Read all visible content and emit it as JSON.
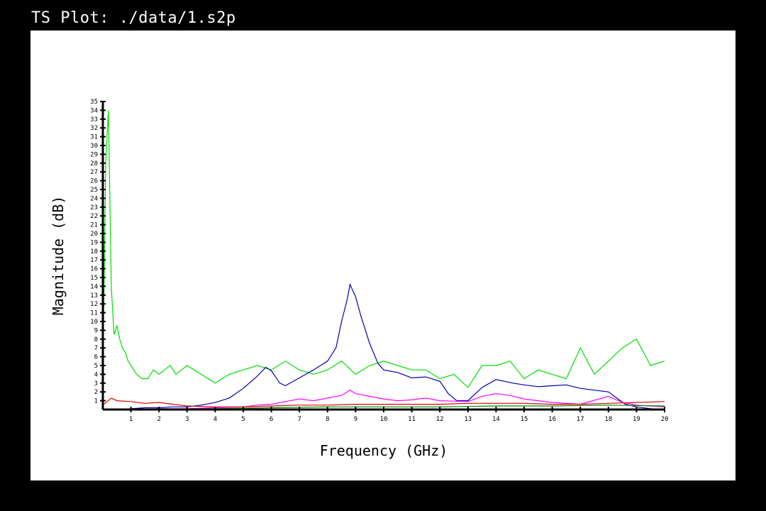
{
  "window": {
    "title": "TS Plot: ./data/1.s2p"
  },
  "colors": {
    "background": "#000000",
    "plot_background": "#ffffff",
    "axis": "#000000"
  },
  "chart_data": {
    "type": "line",
    "xlabel": "Frequency (GHz)",
    "ylabel": "Magnitude (dB)",
    "xlim": [
      0,
      20
    ],
    "ylim": [
      0,
      35
    ],
    "x_ticks": [
      "1",
      "2",
      "3",
      "4",
      "5",
      "6",
      "7",
      "8",
      "9",
      "10",
      "11",
      "12",
      "13",
      "14",
      "15",
      "16",
      "17",
      "18",
      "19",
      "20"
    ],
    "y_ticks": [
      "1",
      "2",
      "3",
      "4",
      "5",
      "6",
      "7",
      "8",
      "9",
      "10",
      "11",
      "12",
      "13",
      "14",
      "15",
      "16",
      "17",
      "18",
      "19",
      "20",
      "21",
      "22",
      "23",
      "24",
      "25",
      "26",
      "27",
      "28",
      "29",
      "30",
      "31",
      "32",
      "33",
      "34",
      "35"
    ],
    "grid": false,
    "series": [
      {
        "color": "#00dd00",
        "x": [
          0.0,
          0.1,
          0.2,
          0.3,
          0.4,
          0.5,
          0.6,
          0.7,
          0.8,
          0.9,
          1.0,
          1.2,
          1.4,
          1.6,
          1.8,
          2.0,
          2.2,
          2.4,
          2.6,
          2.8,
          3.0,
          3.5,
          4.0,
          4.5,
          5.0,
          5.5,
          6.0,
          6.5,
          7.0,
          7.5,
          8.0,
          8.5,
          9.0,
          9.5,
          10.0,
          10.5,
          11.0,
          11.5,
          12.0,
          12.5,
          13.0,
          13.5,
          14.0,
          14.5,
          15.0,
          15.5,
          16.0,
          16.5,
          17.0,
          17.5,
          18.0,
          18.5,
          19.0,
          19.5,
          20.0
        ],
        "values": [
          3.0,
          28.0,
          34.0,
          14.0,
          8.5,
          9.5,
          8.0,
          7.0,
          6.5,
          5.5,
          5.0,
          4.0,
          3.5,
          3.5,
          4.5,
          4.0,
          4.5,
          5.0,
          4.0,
          4.5,
          5.0,
          4.0,
          3.0,
          4.0,
          4.5,
          5.0,
          4.5,
          5.5,
          4.5,
          4.0,
          4.5,
          5.5,
          4.0,
          5.0,
          5.5,
          5.0,
          4.5,
          4.5,
          3.5,
          4.0,
          2.5,
          5.0,
          5.0,
          5.5,
          3.5,
          4.5,
          4.0,
          3.5,
          7.0,
          4.0,
          5.5,
          7.0,
          8.0,
          5.0,
          5.5
        ]
      },
      {
        "color": "#0000aa",
        "x": [
          0.0,
          0.5,
          1.0,
          1.5,
          2.0,
          2.5,
          3.0,
          3.5,
          4.0,
          4.5,
          5.0,
          5.5,
          5.8,
          6.0,
          6.3,
          6.5,
          7.0,
          7.5,
          8.0,
          8.3,
          8.5,
          8.7,
          8.8,
          9.0,
          9.2,
          9.5,
          9.8,
          10.0,
          10.5,
          11.0,
          11.5,
          12.0,
          12.3,
          12.6,
          13.0,
          13.5,
          14.0,
          14.3,
          14.6,
          15.0,
          15.5,
          16.0,
          16.5,
          17.0,
          17.5,
          18.0,
          18.3,
          18.6,
          19.0,
          19.5,
          20.0
        ],
        "values": [
          0.0,
          0.0,
          0.1,
          0.2,
          0.2,
          0.3,
          0.3,
          0.5,
          0.8,
          1.3,
          2.4,
          3.8,
          4.8,
          4.4,
          3.0,
          2.7,
          3.6,
          4.5,
          5.5,
          7.0,
          10.0,
          12.5,
          14.2,
          12.8,
          10.5,
          7.5,
          5.2,
          4.5,
          4.2,
          3.6,
          3.7,
          3.2,
          1.8,
          1.0,
          1.0,
          2.5,
          3.4,
          3.2,
          3.0,
          2.8,
          2.6,
          2.7,
          2.8,
          2.4,
          2.2,
          2.0,
          1.3,
          0.6,
          0.3,
          0.1,
          0.0
        ]
      },
      {
        "color": "#ff00ff",
        "x": [
          0.0,
          1.0,
          2.0,
          3.0,
          4.0,
          5.0,
          5.5,
          6.0,
          6.5,
          7.0,
          7.5,
          8.0,
          8.5,
          8.8,
          9.0,
          9.5,
          10.0,
          10.5,
          11.0,
          11.5,
          12.0,
          13.0,
          13.5,
          14.0,
          14.5,
          15.0,
          15.5,
          16.0,
          17.0,
          18.0,
          18.5,
          19.0,
          20.0
        ],
        "values": [
          0.0,
          0.0,
          0.1,
          0.1,
          0.2,
          0.3,
          0.5,
          0.6,
          0.9,
          1.2,
          1.0,
          1.3,
          1.6,
          2.2,
          1.8,
          1.5,
          1.2,
          1.0,
          1.1,
          1.3,
          1.0,
          0.9,
          1.5,
          1.8,
          1.6,
          1.2,
          1.0,
          0.8,
          0.6,
          1.5,
          0.8,
          0.5,
          0.3
        ]
      },
      {
        "color": "#dd0000",
        "x": [
          0.0,
          0.3,
          0.5,
          1.0,
          1.5,
          2.0,
          2.5,
          3.0,
          4.0,
          5.0,
          6.0,
          7.0,
          8.0,
          9.0,
          10.0,
          11.0,
          12.0,
          13.0,
          14.0,
          15.0,
          16.0,
          17.0,
          18.0,
          19.0,
          20.0
        ],
        "values": [
          0.5,
          1.3,
          1.0,
          0.9,
          0.7,
          0.8,
          0.6,
          0.4,
          0.3,
          0.3,
          0.4,
          0.5,
          0.5,
          0.6,
          0.6,
          0.6,
          0.6,
          0.7,
          0.7,
          0.7,
          0.6,
          0.6,
          0.7,
          0.8,
          0.9
        ]
      },
      {
        "color": "#008800",
        "x": [
          0.0,
          2.0,
          4.0,
          6.0,
          8.0,
          10.0,
          12.0,
          14.0,
          16.0,
          18.0,
          20.0
        ],
        "values": [
          0.0,
          0.05,
          0.1,
          0.2,
          0.3,
          0.3,
          0.3,
          0.4,
          0.4,
          0.5,
          0.4
        ]
      }
    ]
  }
}
